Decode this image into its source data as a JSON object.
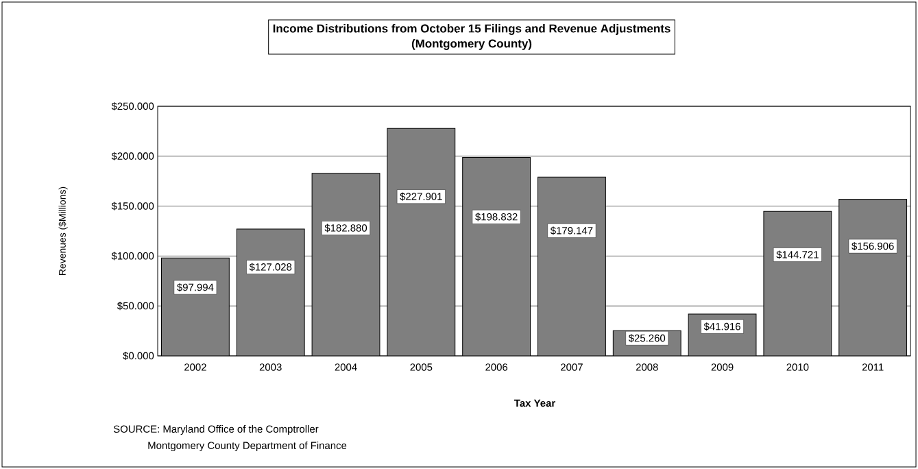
{
  "chart_data": {
    "type": "bar",
    "title": "Income Distributions from October 15 Filings and Revenue Adjustments",
    "subtitle": "(Montgomery County)",
    "xlabel": "Tax Year",
    "ylabel": "Revenues ($Millions)",
    "categories": [
      "2002",
      "2003",
      "2004",
      "2005",
      "2006",
      "2007",
      "2008",
      "2009",
      "2010",
      "2011"
    ],
    "values": [
      97.994,
      127.028,
      182.88,
      227.901,
      198.832,
      179.147,
      25.26,
      41.916,
      144.721,
      156.906
    ],
    "value_labels": [
      "$97.994",
      "$127.028",
      "$182.880",
      "$227.901",
      "$198.832",
      "$179.147",
      "$25.260",
      "$41.916",
      "$144.721",
      "$156.906"
    ],
    "color": "#7f7f7f",
    "ylim": [
      0,
      250
    ],
    "yticks": [
      {
        "value": 0,
        "label": "$0.000"
      },
      {
        "value": 50,
        "label": "$50.000"
      },
      {
        "value": 100,
        "label": "$100.000"
      },
      {
        "value": 150,
        "label": "$150.000"
      },
      {
        "value": 200,
        "label": "$200.000"
      },
      {
        "value": 250,
        "label": "$250.000"
      }
    ],
    "grid": "y",
    "annotations": [
      "SOURCE:  Maryland Office of the Comptroller",
      "Montgomery County Department of Finance"
    ]
  }
}
